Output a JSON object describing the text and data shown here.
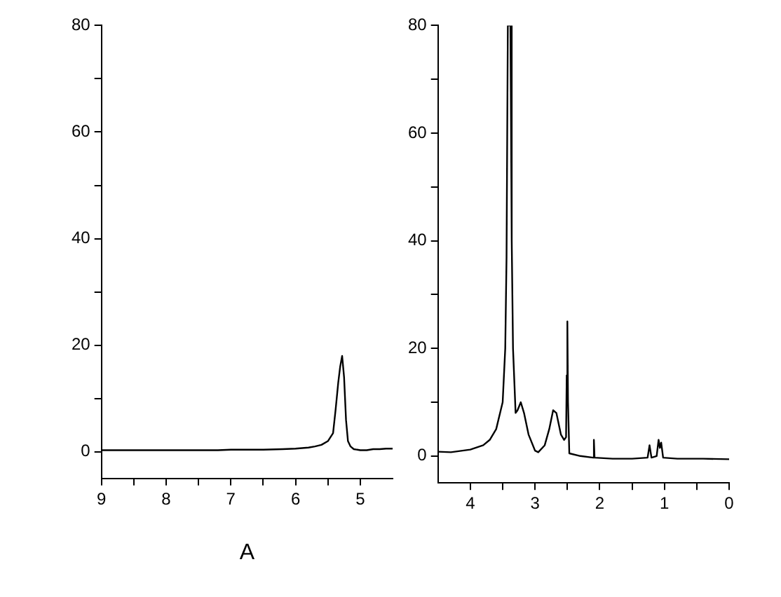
{
  "chart_data": [
    {
      "type": "line",
      "xlabel": "A",
      "xlim": [
        9,
        4.5
      ],
      "xticks": [
        9,
        {
          "value": 8.5,
          "label": null
        },
        8,
        {
          "value": 7.5,
          "label": null
        },
        7,
        {
          "value": 6.5,
          "label": null
        },
        6,
        {
          "value": 5.5,
          "label": null
        },
        5
      ],
      "ylim": [
        -5,
        80
      ],
      "yticks": [
        0,
        {
          "value": 10,
          "label": null
        },
        20,
        {
          "value": 30,
          "label": null
        },
        40,
        {
          "value": 50,
          "label": null
        },
        60,
        {
          "value": 70,
          "label": null
        },
        80
      ],
      "grid": false,
      "legend": false,
      "marker": "none",
      "line_style": "solid",
      "series": [
        {
          "color": "#000000",
          "x": [
            9,
            8.8,
            8.5,
            8.2,
            8,
            7.8,
            7.5,
            7.2,
            7,
            6.8,
            6.5,
            6.2,
            6,
            5.8,
            5.7,
            5.6,
            5.5,
            5.42,
            5.38,
            5.34,
            5.31,
            5.28,
            5.25,
            5.22,
            5.19,
            5.15,
            5.1,
            5,
            4.9,
            4.8,
            4.7,
            4.6,
            4.5
          ],
          "values": [
            0.3,
            0.3,
            0.3,
            0.3,
            0.3,
            0.3,
            0.3,
            0.3,
            0.4,
            0.4,
            0.4,
            0.5,
            0.6,
            0.8,
            1,
            1.3,
            2,
            3.5,
            8,
            13,
            16,
            18,
            14,
            6,
            2,
            1,
            0.5,
            0.3,
            0.3,
            0.5,
            0.5,
            0.6,
            0.6
          ]
        }
      ]
    },
    {
      "type": "line",
      "xlim": [
        4.5,
        0
      ],
      "xticks": [
        4,
        {
          "value": 3.5,
          "label": null
        },
        3,
        {
          "value": 2.5,
          "label": null
        },
        2,
        {
          "value": 1.5,
          "label": null
        },
        1,
        {
          "value": 0.5,
          "label": null
        },
        0
      ],
      "ylim": [
        -5,
        80
      ],
      "yticks": [
        0,
        {
          "value": 10,
          "label": null
        },
        20,
        {
          "value": 30,
          "label": null
        },
        40,
        {
          "value": 50,
          "label": null
        },
        60,
        {
          "value": 70,
          "label": null
        },
        80
      ],
      "grid": false,
      "legend": false,
      "marker": "none",
      "line_style": "solid",
      "series": [
        {
          "color": "#000000",
          "x": [
            4.5,
            4.3,
            4.0,
            3.8,
            3.7,
            3.6,
            3.5,
            3.46,
            3.44,
            3.42,
            3.38,
            3.36,
            3.34,
            3.3,
            3.27,
            3.22,
            3.17,
            3.1,
            3.0,
            2.95,
            2.85,
            2.78,
            2.72,
            2.67,
            2.6,
            2.55,
            2.52,
            2.51,
            2.5,
            2.49,
            2.47,
            2.3,
            2.1,
            2.09,
            2.08,
            1.8,
            1.5,
            1.26,
            1.23,
            1.2,
            1.12,
            1.09,
            1.07,
            1.05,
            1.02,
            0.8,
            0.4,
            0
          ],
          "values": [
            0.8,
            0.7,
            1.2,
            2,
            3,
            5,
            10,
            20,
            37,
            80,
            80,
            40,
            20,
            8,
            8.5,
            10,
            8,
            4,
            1,
            0.7,
            2,
            5,
            8.5,
            8,
            4,
            3,
            3.5,
            15,
            25,
            10,
            0.5,
            0,
            -0.3,
            3,
            -0.3,
            -0.5,
            -0.5,
            -0.3,
            2,
            -0.3,
            0,
            3,
            1.5,
            2.5,
            -0.3,
            -0.5,
            -0.5,
            -0.6
          ]
        }
      ]
    }
  ]
}
